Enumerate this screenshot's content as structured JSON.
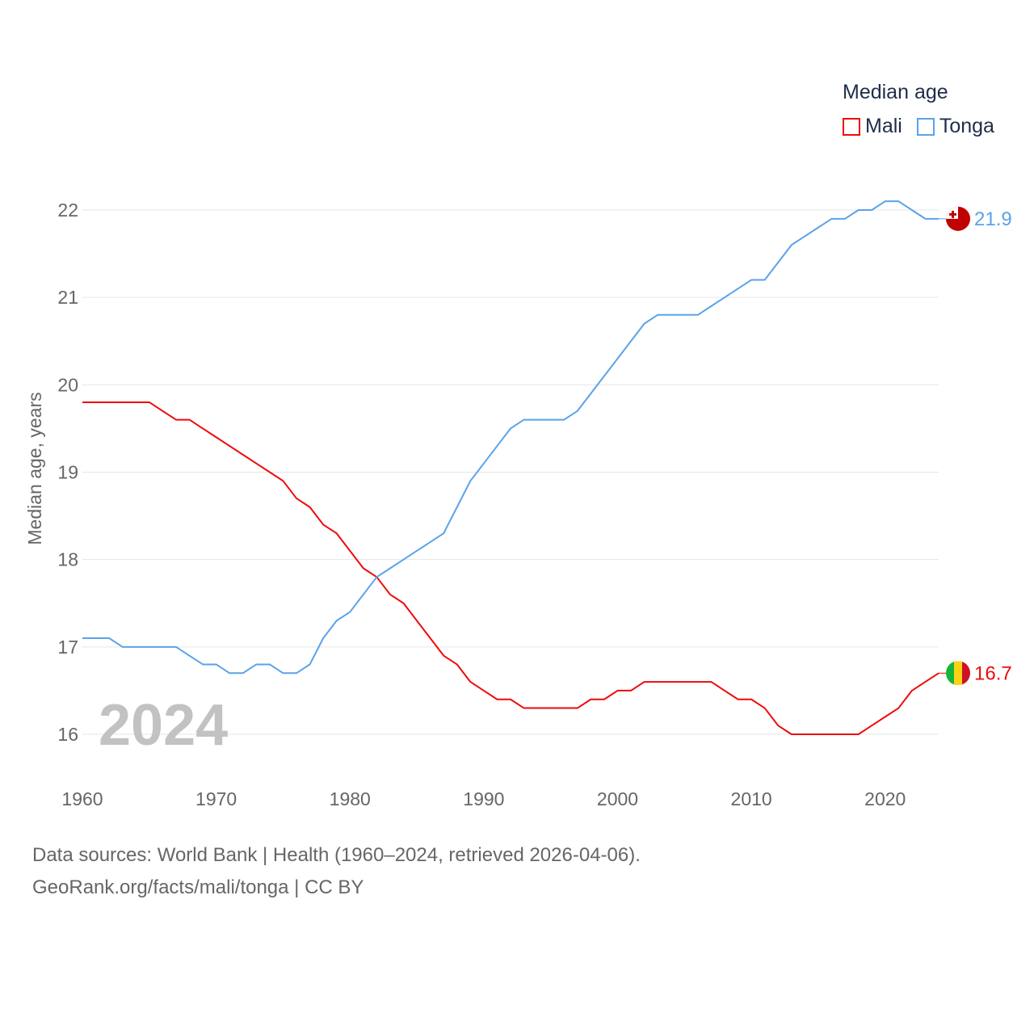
{
  "legend": {
    "title": "Median age",
    "items": [
      {
        "name": "Mali",
        "color": "#ee0a0a"
      },
      {
        "name": "Tonga",
        "color": "#5aa2ea"
      }
    ]
  },
  "year_watermark": "2024",
  "footer": {
    "line1": "Data sources: World Bank | Health (1960–2024, retrieved 2026-04-06).",
    "line2": "GeoRank.org/facts/mali/tonga | CC BY"
  },
  "chart_data": {
    "type": "line",
    "title": "Median age",
    "xlabel": "",
    "ylabel": "Median age, years",
    "xlim": [
      1960,
      2024
    ],
    "ylim": [
      16,
      22
    ],
    "xticks": [
      1960,
      1970,
      1980,
      1990,
      2000,
      2010,
      2020
    ],
    "yticks": [
      16,
      17,
      18,
      19,
      20,
      21,
      22
    ],
    "grid": true,
    "legend_placement": "top-right",
    "x": [
      1960,
      1961,
      1962,
      1963,
      1964,
      1965,
      1966,
      1967,
      1968,
      1969,
      1970,
      1971,
      1972,
      1973,
      1974,
      1975,
      1976,
      1977,
      1978,
      1979,
      1980,
      1981,
      1982,
      1983,
      1984,
      1985,
      1986,
      1987,
      1988,
      1989,
      1990,
      1991,
      1992,
      1993,
      1994,
      1995,
      1996,
      1997,
      1998,
      1999,
      2000,
      2001,
      2002,
      2003,
      2004,
      2005,
      2006,
      2007,
      2008,
      2009,
      2010,
      2011,
      2012,
      2013,
      2014,
      2015,
      2016,
      2017,
      2018,
      2019,
      2020,
      2021,
      2022,
      2023,
      2024
    ],
    "series": [
      {
        "name": "Mali",
        "color": "#ee0a0a",
        "end_label": "16.7",
        "values": [
          19.8,
          19.8,
          19.8,
          19.8,
          19.8,
          19.8,
          19.7,
          19.6,
          19.6,
          19.5,
          19.4,
          19.3,
          19.2,
          19.1,
          19.0,
          18.9,
          18.7,
          18.6,
          18.4,
          18.3,
          18.1,
          17.9,
          17.8,
          17.6,
          17.5,
          17.3,
          17.1,
          16.9,
          16.8,
          16.6,
          16.5,
          16.4,
          16.4,
          16.3,
          16.3,
          16.3,
          16.3,
          16.3,
          16.4,
          16.4,
          16.5,
          16.5,
          16.6,
          16.6,
          16.6,
          16.6,
          16.6,
          16.6,
          16.5,
          16.4,
          16.4,
          16.3,
          16.1,
          16.0,
          16.0,
          16.0,
          16.0,
          16.0,
          16.0,
          16.1,
          16.2,
          16.3,
          16.5,
          16.6,
          16.7
        ]
      },
      {
        "name": "Tonga",
        "color": "#5aa2ea",
        "end_label": "21.9",
        "values": [
          17.1,
          17.1,
          17.1,
          17.0,
          17.0,
          17.0,
          17.0,
          17.0,
          16.9,
          16.8,
          16.8,
          16.7,
          16.7,
          16.8,
          16.8,
          16.7,
          16.7,
          16.8,
          17.1,
          17.3,
          17.4,
          17.6,
          17.8,
          17.9,
          18.0,
          18.1,
          18.2,
          18.3,
          18.6,
          18.9,
          19.1,
          19.3,
          19.5,
          19.6,
          19.6,
          19.6,
          19.6,
          19.7,
          19.9,
          20.1,
          20.3,
          20.5,
          20.7,
          20.8,
          20.8,
          20.8,
          20.8,
          20.9,
          21.0,
          21.1,
          21.2,
          21.2,
          21.4,
          21.6,
          21.7,
          21.8,
          21.9,
          21.9,
          22.0,
          22.0,
          22.1,
          22.1,
          22.0,
          21.9,
          21.9
        ]
      }
    ]
  }
}
